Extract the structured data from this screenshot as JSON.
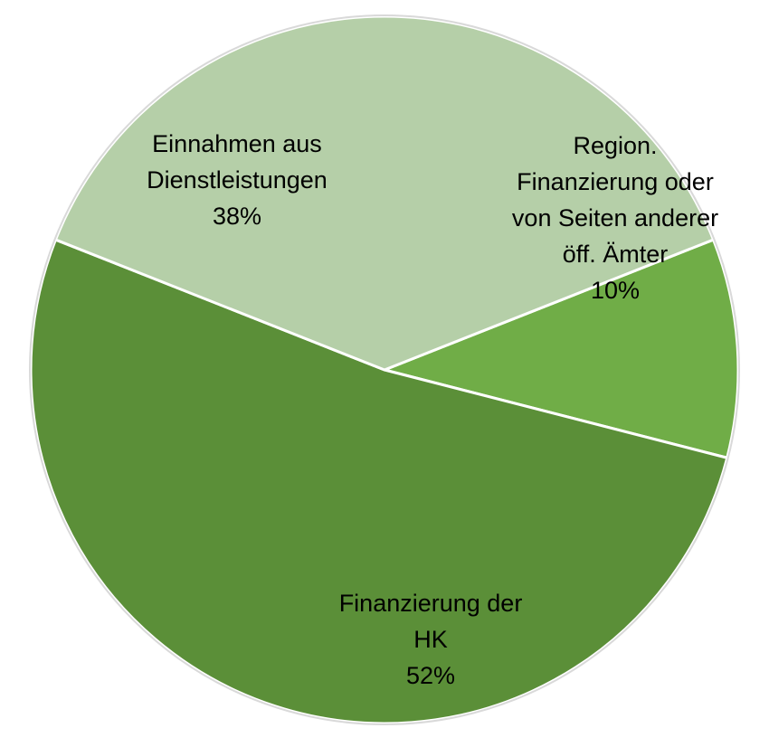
{
  "chart_data": {
    "type": "pie",
    "slices": [
      {
        "label_lines": [
          "Region.",
          "Finanzierung oder",
          "von Seiten anderer",
          "öff. Ämter"
        ],
        "value": 10,
        "pct_label": "10%",
        "color": "#70ad47"
      },
      {
        "label_lines": [
          "Finanzierung der",
          "HK"
        ],
        "value": 52,
        "pct_label": "52%",
        "color": "#5b8f38"
      },
      {
        "label_lines": [
          "Einnahmen aus",
          "Dienstleistungen"
        ],
        "value": 38,
        "pct_label": "38%",
        "color": "#b5cfa8"
      }
    ],
    "slice_border_color": "#ffffff",
    "outline_color": "#d9d9d9",
    "legend": "none"
  }
}
